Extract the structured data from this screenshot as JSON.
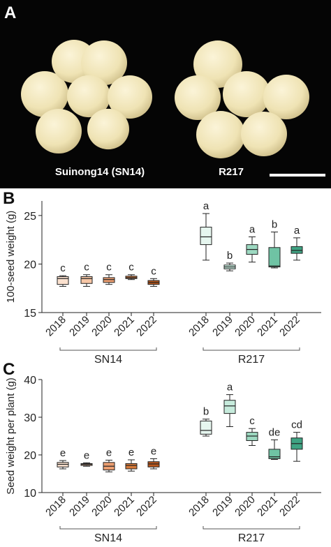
{
  "panel_a": {
    "letter": "A",
    "left_label": "Suinong14 (SN14)",
    "right_label": "R217",
    "seed_color": "#efe3b4",
    "background": "#050505",
    "scale_bar_color": "#ffffff"
  },
  "colors": {
    "SN14": [
      "#fbe1cf",
      "#f6c6a5",
      "#ec9e70",
      "#d77a3a",
      "#b9571c"
    ],
    "R217": [
      "#e6f6ef",
      "#c6ebdc",
      "#9dd9c1",
      "#6fc3a4",
      "#3fa383"
    ]
  },
  "chart_data": [
    {
      "type": "box",
      "panel": "B",
      "ylabel": "100-seed weight (g)",
      "ylim": [
        15,
        26.5
      ],
      "yticks": [
        15,
        20,
        25
      ],
      "groups": [
        {
          "name": "SN14",
          "categories": [
            "2018",
            "2019",
            "2020",
            "2021",
            "2022"
          ],
          "boxes": [
            {
              "min": 17.7,
              "q1": 17.9,
              "median": 18.5,
              "q3": 18.7,
              "max": 18.8,
              "letter": "c"
            },
            {
              "min": 17.7,
              "q1": 18.0,
              "median": 18.5,
              "q3": 18.7,
              "max": 18.9,
              "letter": "c"
            },
            {
              "min": 17.9,
              "q1": 18.1,
              "median": 18.4,
              "q3": 18.6,
              "max": 18.9,
              "letter": "c"
            },
            {
              "min": 18.4,
              "q1": 18.5,
              "median": 18.6,
              "q3": 18.75,
              "max": 18.9,
              "letter": "c"
            },
            {
              "min": 17.7,
              "q1": 17.9,
              "median": 18.1,
              "q3": 18.3,
              "max": 18.5,
              "letter": "c"
            }
          ]
        },
        {
          "name": "R217",
          "categories": [
            "2018",
            "2019",
            "2020",
            "2021",
            "2022"
          ],
          "boxes": [
            {
              "min": 20.4,
              "q1": 22.0,
              "median": 22.8,
              "q3": 23.8,
              "max": 25.2,
              "letter": "a"
            },
            {
              "min": 19.3,
              "q1": 19.5,
              "median": 19.7,
              "q3": 19.9,
              "max": 20.1,
              "letter": "b"
            },
            {
              "min": 20.2,
              "q1": 21.0,
              "median": 21.5,
              "q3": 22.0,
              "max": 22.8,
              "letter": "a"
            },
            {
              "min": 19.6,
              "q1": 19.7,
              "median": 19.8,
              "q3": 21.7,
              "max": 23.3,
              "letter": "b"
            },
            {
              "min": 20.4,
              "q1": 21.1,
              "median": 21.4,
              "q3": 21.8,
              "max": 22.7,
              "letter": "a"
            }
          ]
        }
      ]
    },
    {
      "type": "box",
      "panel": "C",
      "ylabel": "Seed weight per plant (g)",
      "ylim": [
        10,
        40
      ],
      "yticks": [
        10,
        20,
        30,
        40
      ],
      "groups": [
        {
          "name": "SN14",
          "categories": [
            "2018",
            "2019",
            "2020",
            "2021",
            "2022"
          ],
          "boxes": [
            {
              "min": 16.3,
              "q1": 16.8,
              "median": 17.5,
              "q3": 18.0,
              "max": 18.5,
              "letter": "e"
            },
            {
              "min": 17.0,
              "q1": 17.2,
              "median": 17.5,
              "q3": 17.7,
              "max": 17.9,
              "letter": "e"
            },
            {
              "min": 15.5,
              "q1": 16.0,
              "median": 17.0,
              "q3": 18.0,
              "max": 18.6,
              "letter": "e"
            },
            {
              "min": 15.7,
              "q1": 16.3,
              "median": 17.2,
              "q3": 17.7,
              "max": 18.7,
              "letter": "e"
            },
            {
              "min": 16.3,
              "q1": 16.8,
              "median": 17.6,
              "q3": 18.2,
              "max": 19.0,
              "letter": "e"
            }
          ]
        },
        {
          "name": "R217",
          "categories": [
            "2018",
            "2019",
            "2020",
            "2021",
            "2022"
          ],
          "boxes": [
            {
              "min": 25.0,
              "q1": 25.5,
              "median": 26.5,
              "q3": 29.0,
              "max": 29.5,
              "letter": "b"
            },
            {
              "min": 27.5,
              "q1": 31.0,
              "median": 33.0,
              "q3": 34.5,
              "max": 36.0,
              "letter": "a"
            },
            {
              "min": 22.5,
              "q1": 23.8,
              "median": 25.0,
              "q3": 26.0,
              "max": 27.0,
              "letter": "c"
            },
            {
              "min": 18.8,
              "q1": 19.0,
              "median": 19.5,
              "q3": 21.5,
              "max": 24.0,
              "letter": "de"
            },
            {
              "min": 18.3,
              "q1": 21.5,
              "median": 23.0,
              "q3": 24.5,
              "max": 26.0,
              "letter": "cd"
            }
          ]
        }
      ]
    }
  ]
}
